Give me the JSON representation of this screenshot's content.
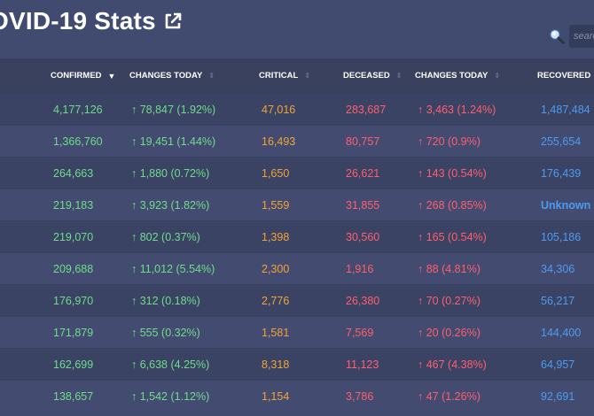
{
  "header": {
    "title": "OVID-19 Stats",
    "external_icon": "external-link-icon"
  },
  "search": {
    "placeholder": "search",
    "icon": "search-icon"
  },
  "columns": [
    {
      "label": "CONFIRMED",
      "sort": "desc"
    },
    {
      "label": "CHANGES TODAY",
      "sort": "none"
    },
    {
      "label": "CRITICAL",
      "sort": "none"
    },
    {
      "label": "DECEASED",
      "sort": "none"
    },
    {
      "label": "CHANGES TODAY",
      "sort": "none"
    },
    {
      "label": "RECOVERED",
      "sort": "none"
    }
  ],
  "rows": [
    {
      "confirmed": "4,177,126",
      "changes_confirmed": "↑ 78,847 (1.92%)",
      "critical": "47,016",
      "deceased": "283,687",
      "changes_deceased": "↑ 3,463 (1.24%)",
      "recovered": "1,487,484"
    },
    {
      "confirmed": "1,366,760",
      "changes_confirmed": "↑ 19,451 (1.44%)",
      "critical": "16,493",
      "deceased": "80,757",
      "changes_deceased": "↑ 720 (0.9%)",
      "recovered": "255,654"
    },
    {
      "confirmed": "264,663",
      "changes_confirmed": "↑ 1,880 (0.72%)",
      "critical": "1,650",
      "deceased": "26,621",
      "changes_deceased": "↑ 143 (0.54%)",
      "recovered": "176,439"
    },
    {
      "confirmed": "219,183",
      "changes_confirmed": "↑ 3,923 (1.82%)",
      "critical": "1,559",
      "deceased": "31,855",
      "changes_deceased": "↑ 268 (0.85%)",
      "recovered": "Unknown"
    },
    {
      "confirmed": "219,070",
      "changes_confirmed": "↑ 802 (0.37%)",
      "critical": "1,398",
      "deceased": "30,560",
      "changes_deceased": "↑ 165 (0.54%)",
      "recovered": "105,186"
    },
    {
      "confirmed": "209,688",
      "changes_confirmed": "↑ 11,012 (5.54%)",
      "critical": "2,300",
      "deceased": "1,916",
      "changes_deceased": "↑ 88 (4.81%)",
      "recovered": "34,306"
    },
    {
      "confirmed": "176,970",
      "changes_confirmed": "↑ 312 (0.18%)",
      "critical": "2,776",
      "deceased": "26,380",
      "changes_deceased": "↑ 70 (0.27%)",
      "recovered": "56,217"
    },
    {
      "confirmed": "171,879",
      "changes_confirmed": "↑ 555 (0.32%)",
      "critical": "1,581",
      "deceased": "7,569",
      "changes_deceased": "↑ 20 (0.26%)",
      "recovered": "144,400"
    },
    {
      "confirmed": "162,699",
      "changes_confirmed": "↑ 6,638 (4.25%)",
      "critical": "8,318",
      "deceased": "11,123",
      "changes_deceased": "↑ 467 (4.38%)",
      "recovered": "64,957"
    },
    {
      "confirmed": "138,657",
      "changes_confirmed": "↑ 1,542 (1.12%)",
      "critical": "1,154",
      "deceased": "3,786",
      "changes_deceased": "↑ 47 (1.26%)",
      "recovered": "92,691"
    }
  ],
  "colors": {
    "background": "#414a6f",
    "header_row": "#39415f",
    "confirmed": "#6fdc8c",
    "critical": "#f2a33a",
    "deceased": "#ff5f6d",
    "recovered": "#4d9bf0"
  }
}
